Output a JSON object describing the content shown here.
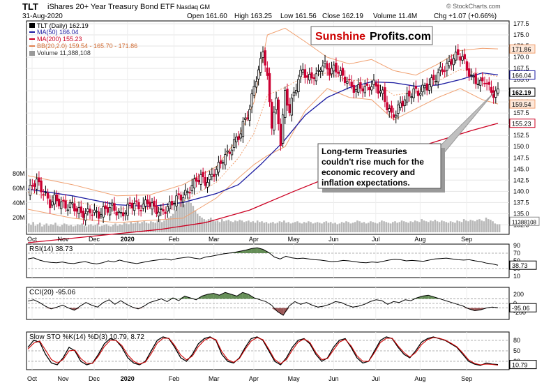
{
  "header": {
    "symbol": "TLT",
    "name": "iShares 20+ Year Treasury Bond ETF",
    "exchange": "Nasdaq GM",
    "date": "31-Aug-2020",
    "open": "Open 161.60",
    "high": "High 163.25",
    "low": "Low 161.56",
    "close": "Close 162.19",
    "volume": "Volume 11.4M",
    "change": "Chg +1.07 (+0.66%)",
    "watermark": "© StockCharts.com"
  },
  "legend": {
    "price": "TLT (Daily) 162.19",
    "ma50": "MA(50) 166.04",
    "ma200": "MA(200) 155.23",
    "bb": "BB(20,2.0) 159.54 - 165.70 - 171.86",
    "volume": "Volume 11,388,108"
  },
  "logo": {
    "part1": "Sunshine",
    "part2": "Profits.com"
  },
  "annotation": {
    "lines": [
      "Long-term Treasuries",
      "couldn't rise much for the",
      "economic recovery and",
      "inflation expectations."
    ]
  },
  "colors": {
    "up": "#000000",
    "down": "#cc0033",
    "ma50": "#1a1aa0",
    "ma200": "#cc0022",
    "bb": "#f0a070",
    "volume": "#b8b8b8",
    "indicator_fill_pos": "#4a7a3a",
    "indicator_fill_neg": "#8a3a3a",
    "logo_red": "#cc0000"
  },
  "chart_data": {
    "type": "candlestick",
    "price_axis": {
      "range": [
        131,
        177.5
      ],
      "ticks": [
        "177.5",
        "175.0",
        "172.5",
        "170.0",
        "167.5",
        "165.0",
        "162.5",
        "160.0",
        "157.5",
        "155.0",
        "152.5",
        "150.0",
        "147.5",
        "145.0",
        "142.5",
        "140.0",
        "137.5",
        "135.0",
        "132.5"
      ],
      "tags": [
        {
          "label": "171.86",
          "value": 171.86,
          "kind": "bb"
        },
        {
          "label": "166.04",
          "value": 166.04,
          "kind": "ma50"
        },
        {
          "label": "162.19",
          "value": 162.19,
          "kind": "price"
        },
        {
          "label": "159.54",
          "value": 159.54,
          "kind": "bb"
        },
        {
          "label": "155.23",
          "value": 155.23,
          "kind": "ma200"
        },
        {
          "label": "11388108",
          "value": 133.3,
          "kind": "volume"
        }
      ]
    },
    "volume_axis": {
      "ticks": [
        "80M",
        "60M",
        "40M",
        "20M"
      ]
    },
    "months": [
      "Oct",
      "Nov",
      "Dec",
      "2020",
      "Feb",
      "Mar",
      "Apr",
      "May",
      "Jun",
      "Jul",
      "Aug",
      "Sep"
    ],
    "close_path": [
      [
        0,
        139.5
      ],
      [
        2,
        141.5
      ],
      [
        4,
        142.3
      ],
      [
        6,
        140.5
      ],
      [
        8,
        139.0
      ],
      [
        10,
        137.2
      ],
      [
        12,
        138.3
      ],
      [
        14,
        137.6
      ],
      [
        16,
        137.0
      ],
      [
        18,
        136.5
      ],
      [
        20,
        137.0
      ],
      [
        22,
        135.8
      ],
      [
        24,
        135.2
      ],
      [
        26,
        134.8
      ],
      [
        28,
        135.6
      ],
      [
        30,
        135.2
      ],
      [
        32,
        134.7
      ],
      [
        34,
        135.7
      ],
      [
        36,
        136.2
      ],
      [
        38,
        136.5
      ],
      [
        40,
        135.5
      ],
      [
        42,
        134.6
      ],
      [
        44,
        135.7
      ],
      [
        46,
        136.9
      ],
      [
        48,
        137.4
      ],
      [
        50,
        136.2
      ],
      [
        52,
        136.8
      ],
      [
        54,
        137.8
      ],
      [
        56,
        136.7
      ],
      [
        58,
        135.8
      ],
      [
        60,
        135.3
      ],
      [
        62,
        135.9
      ],
      [
        64,
        136.8
      ],
      [
        66,
        138.0
      ],
      [
        68,
        138.7
      ],
      [
        70,
        138.9
      ],
      [
        72,
        139.8
      ],
      [
        74,
        141.2
      ],
      [
        76,
        142.6
      ],
      [
        78,
        143.2
      ],
      [
        80,
        142.0
      ],
      [
        82,
        142.9
      ],
      [
        84,
        144.2
      ],
      [
        86,
        145.6
      ],
      [
        88,
        147.3
      ],
      [
        90,
        148.3
      ],
      [
        92,
        149.8
      ],
      [
        94,
        151.8
      ],
      [
        96,
        153.0
      ],
      [
        98,
        156.5
      ],
      [
        100,
        158.0
      ],
      [
        102,
        164.0
      ],
      [
        104,
        166.5
      ],
      [
        106,
        172.0
      ],
      [
        108,
        165.0
      ],
      [
        110,
        155.0
      ],
      [
        112,
        160.0
      ],
      [
        114,
        151.0
      ],
      [
        116,
        162.0
      ],
      [
        118,
        158.0
      ],
      [
        120,
        162.0
      ],
      [
        122,
        165.0
      ],
      [
        124,
        167.5
      ],
      [
        126,
        165.0
      ],
      [
        128,
        166.0
      ],
      [
        130,
        165.5
      ],
      [
        132,
        168.0
      ],
      [
        134,
        168.2
      ],
      [
        136,
        166.8
      ],
      [
        138,
        167.5
      ],
      [
        140,
        167.0
      ],
      [
        142,
        165.5
      ],
      [
        144,
        164.8
      ],
      [
        146,
        163.5
      ],
      [
        148,
        162.5
      ],
      [
        150,
        163.5
      ],
      [
        152,
        162.8
      ],
      [
        154,
        163.5
      ],
      [
        156,
        164.0
      ],
      [
        158,
        162.8
      ],
      [
        160,
        161.8
      ],
      [
        162,
        159.0
      ],
      [
        164,
        157.0
      ],
      [
        166,
        157.5
      ],
      [
        168,
        159.5
      ],
      [
        170,
        160.5
      ],
      [
        172,
        161.5
      ],
      [
        174,
        162.5
      ],
      [
        176,
        162.0
      ],
      [
        178,
        163.0
      ],
      [
        180,
        163.5
      ],
      [
        182,
        164.5
      ],
      [
        184,
        165.5
      ],
      [
        186,
        167.0
      ],
      [
        188,
        167.5
      ],
      [
        190,
        168.5
      ],
      [
        192,
        170.0
      ],
      [
        194,
        170.5
      ],
      [
        196,
        170.0
      ],
      [
        198,
        167.5
      ],
      [
        200,
        165.5
      ],
      [
        202,
        164.8
      ],
      [
        204,
        164.0
      ],
      [
        206,
        165.0
      ],
      [
        208,
        163.0
      ],
      [
        210,
        161.8
      ],
      [
        212,
        162.19
      ]
    ],
    "ma50_path": [
      [
        0,
        140.5
      ],
      [
        20,
        139.0
      ],
      [
        40,
        137.0
      ],
      [
        55,
        136.6
      ],
      [
        70,
        137.5
      ],
      [
        85,
        139.5
      ],
      [
        95,
        141.5
      ],
      [
        105,
        146.0
      ],
      [
        115,
        151.0
      ],
      [
        125,
        157.0
      ],
      [
        135,
        161.0
      ],
      [
        145,
        163.2
      ],
      [
        155,
        164.5
      ],
      [
        165,
        164.3
      ],
      [
        175,
        163.5
      ],
      [
        185,
        163.8
      ],
      [
        195,
        165.0
      ],
      [
        205,
        166.5
      ],
      [
        212,
        166.04
      ]
    ],
    "ma200_path": [
      [
        0,
        128.5
      ],
      [
        30,
        130.0
      ],
      [
        60,
        131.5
      ],
      [
        80,
        133.0
      ],
      [
        100,
        135.8
      ],
      [
        120,
        140.0
      ],
      [
        140,
        144.0
      ],
      [
        160,
        147.5
      ],
      [
        180,
        150.5
      ],
      [
        200,
        153.6
      ],
      [
        212,
        155.23
      ]
    ],
    "bb_upper_path": [
      [
        0,
        143.5
      ],
      [
        20,
        141.5
      ],
      [
        40,
        139.0
      ],
      [
        55,
        139.2
      ],
      [
        70,
        141.5
      ],
      [
        85,
        145.5
      ],
      [
        95,
        152.0
      ],
      [
        102,
        160.0
      ],
      [
        108,
        175.0
      ],
      [
        116,
        176.5
      ],
      [
        125,
        173.5
      ],
      [
        135,
        170.0
      ],
      [
        145,
        168.5
      ],
      [
        155,
        169.5
      ],
      [
        165,
        167.0
      ],
      [
        175,
        166.0
      ],
      [
        185,
        168.5
      ],
      [
        195,
        171.5
      ],
      [
        205,
        172.0
      ],
      [
        212,
        171.86
      ]
    ],
    "bb_lower_path": [
      [
        0,
        136.0
      ],
      [
        20,
        134.0
      ],
      [
        40,
        133.0
      ],
      [
        55,
        133.5
      ],
      [
        70,
        134.0
      ],
      [
        85,
        138.5
      ],
      [
        95,
        143.0
      ],
      [
        102,
        146.0
      ],
      [
        108,
        148.0
      ],
      [
        116,
        150.0
      ],
      [
        125,
        158.0
      ],
      [
        135,
        163.0
      ],
      [
        145,
        161.0
      ],
      [
        155,
        160.5
      ],
      [
        165,
        156.0
      ],
      [
        175,
        158.5
      ],
      [
        185,
        161.0
      ],
      [
        195,
        163.0
      ],
      [
        205,
        160.5
      ],
      [
        212,
        159.54
      ]
    ],
    "volume_bars": [
      12,
      10,
      14,
      9,
      11,
      13,
      8,
      10,
      12,
      9,
      11,
      10,
      13,
      9,
      8,
      10,
      12,
      11,
      9,
      10,
      8,
      9,
      11,
      10,
      12,
      9,
      8,
      10,
      11,
      9,
      10,
      12,
      8,
      9,
      10,
      11,
      9,
      8,
      10,
      12,
      9,
      11,
      10,
      13,
      12,
      11,
      14,
      12,
      13,
      15,
      12,
      14,
      16,
      13,
      12,
      15,
      14,
      13,
      16,
      18,
      14,
      16,
      18,
      20,
      22,
      25,
      30,
      35,
      40,
      45,
      38,
      42,
      48,
      40,
      36,
      30,
      25,
      22,
      20,
      18,
      16,
      18,
      20,
      17,
      15,
      16,
      14,
      18,
      15,
      16,
      17,
      15,
      14,
      16,
      15,
      17,
      16,
      14,
      15,
      16,
      14,
      15,
      13,
      16,
      14,
      15,
      13,
      14,
      12,
      13,
      14,
      12,
      13,
      15,
      14,
      16,
      13,
      14,
      12,
      13,
      14,
      15,
      13,
      12,
      14,
      13,
      15,
      14,
      12,
      13,
      14,
      13,
      12,
      14,
      15,
      13,
      14,
      12,
      13,
      11,
      12,
      14,
      13,
      15,
      14,
      12,
      13,
      14,
      16,
      15,
      13,
      14,
      12,
      13,
      15,
      14,
      13,
      12,
      14,
      16,
      15,
      14,
      13,
      12,
      14,
      15,
      13,
      14,
      16,
      15,
      14,
      13,
      15,
      14,
      16,
      15,
      14,
      18,
      16,
      15,
      14,
      16,
      15,
      17,
      15,
      14,
      16,
      15,
      14,
      13,
      15,
      14,
      13,
      16,
      15,
      14,
      18,
      16,
      15,
      17,
      16,
      15,
      17,
      18,
      16,
      15,
      20,
      18,
      17,
      15,
      12,
      11,
      11
    ],
    "panels": [
      {
        "name": "RSI",
        "title": "RSI(14) 38.73",
        "ticks": [
          "90",
          "70",
          "50",
          "30",
          "10"
        ],
        "range": [
          10,
          90
        ],
        "tag": "38.73",
        "values": [
          55,
          58,
          52,
          48,
          46,
          45,
          47,
          44,
          43,
          46,
          48,
          44,
          42,
          45,
          50,
          47,
          52,
          48,
          45,
          43,
          46,
          49,
          51,
          53,
          55,
          52,
          56,
          58,
          60,
          57,
          55,
          60,
          62,
          65,
          68,
          70,
          72,
          75,
          78,
          82,
          84,
          80,
          72,
          60,
          55,
          62,
          58,
          56,
          57,
          55,
          53,
          52,
          50,
          48,
          49,
          51,
          50,
          48,
          46,
          45,
          47,
          46,
          49,
          52,
          54,
          53,
          50,
          51,
          50,
          49,
          52,
          55,
          56,
          57,
          55,
          53,
          52,
          53,
          50,
          48,
          44,
          42,
          38.73
        ],
        "lines": [
          70,
          30
        ]
      },
      {
        "name": "CCI",
        "title": "CCI(20) -95.06",
        "ticks": [
          "200",
          "0",
          "-200"
        ],
        "range": [
          -320,
          320
        ],
        "tag": "-95.06",
        "values": [
          50,
          80,
          20,
          -60,
          -120,
          -80,
          -40,
          -100,
          -150,
          -60,
          20,
          -40,
          -80,
          20,
          80,
          -20,
          60,
          -20,
          -80,
          -120,
          -60,
          20,
          60,
          100,
          40,
          120,
          60,
          160,
          120,
          80,
          160,
          200,
          220,
          180,
          240,
          200,
          160,
          240,
          200,
          120,
          80,
          40,
          -40,
          -180,
          -260,
          -60,
          40,
          -20,
          20,
          -40,
          -80,
          -60,
          -20,
          40,
          20,
          -40,
          -80,
          -60,
          -20,
          40,
          80,
          60,
          -20,
          40,
          20,
          80,
          60,
          120,
          160,
          180,
          140,
          100,
          60,
          20,
          -20,
          -60,
          -120,
          -160,
          -140,
          -100,
          -80,
          -95.06
        ],
        "lines": [
          100,
          0,
          -100
        ]
      },
      {
        "name": "STO",
        "title": "Slow STO %K(14) %D(3) 10.79, 8.72",
        "ticks": [
          "80",
          "50",
          "20"
        ],
        "range": [
          0,
          100
        ],
        "tag": "10.79",
        "k_values": [
          60,
          80,
          75,
          40,
          15,
          10,
          30,
          60,
          50,
          20,
          10,
          15,
          40,
          70,
          85,
          80,
          60,
          30,
          15,
          10,
          20,
          50,
          80,
          90,
          85,
          60,
          30,
          20,
          40,
          70,
          85,
          90,
          80,
          40,
          20,
          15,
          30,
          60,
          85,
          90,
          80,
          50,
          20,
          10,
          30,
          60,
          80,
          85,
          70,
          40,
          20,
          30,
          60,
          80,
          85,
          60,
          30,
          15,
          20,
          50,
          80,
          90,
          85,
          60,
          40,
          30,
          50,
          75,
          85,
          90,
          85,
          80,
          70,
          60,
          40,
          20,
          12,
          8,
          15,
          12,
          10.79
        ],
        "d_values": [
          55,
          72,
          78,
          52,
          25,
          15,
          25,
          50,
          52,
          28,
          14,
          14,
          35,
          62,
          80,
          80,
          65,
          38,
          20,
          12,
          18,
          42,
          72,
          86,
          86,
          65,
          38,
          24,
          35,
          62,
          80,
          88,
          82,
          48,
          25,
          17,
          28,
          55,
          78,
          88,
          82,
          55,
          25,
          13,
          25,
          52,
          75,
          84,
          74,
          45,
          25,
          28,
          52,
          75,
          83,
          64,
          36,
          20,
          20,
          45,
          74,
          86,
          86,
          64,
          45,
          32,
          45,
          68,
          82,
          88,
          86,
          81,
          72,
          62,
          44,
          24,
          14,
          10,
          12,
          11,
          8.72
        ],
        "lines": [
          80,
          50,
          20
        ]
      }
    ]
  }
}
